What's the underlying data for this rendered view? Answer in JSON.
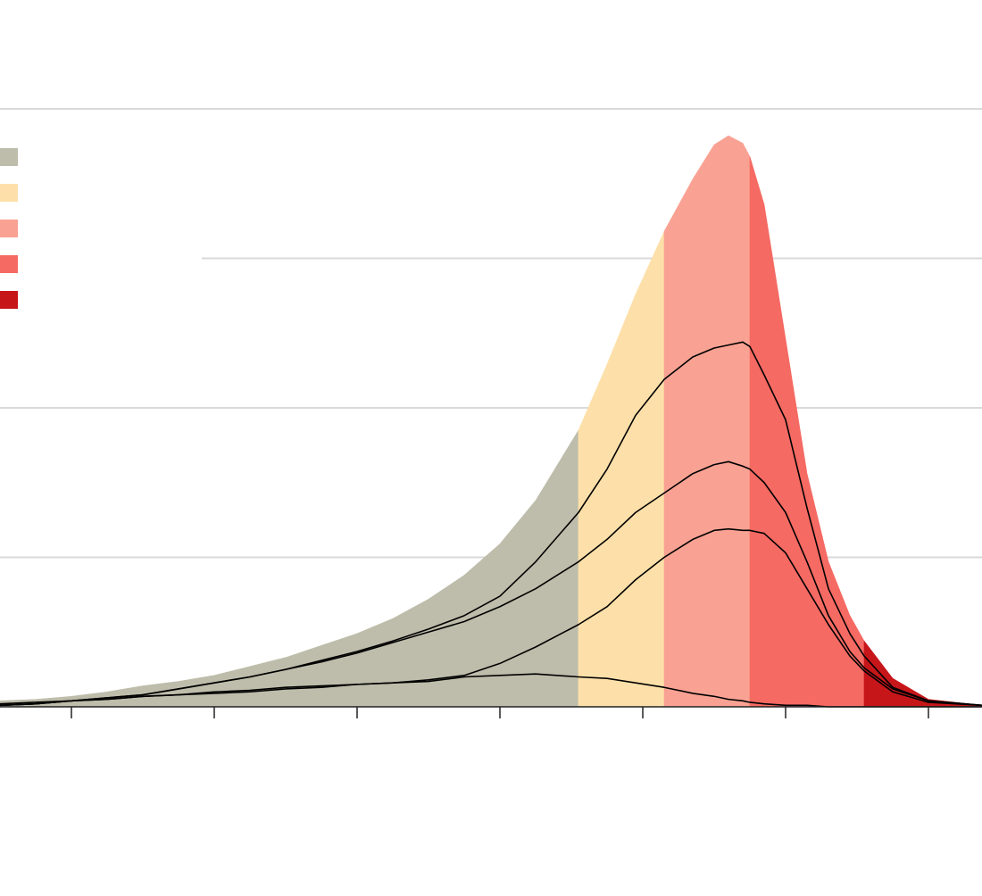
{
  "chart_data": {
    "type": "area",
    "x": [
      0.5,
      0.75,
      1,
      1.25,
      1.5,
      1.75,
      2,
      2.25,
      2.5,
      2.75,
      3,
      3.25,
      3.5,
      3.75,
      4,
      4.25,
      4.55,
      4.75,
      4.95,
      5.15,
      5.35,
      5.5,
      5.6,
      5.7,
      5.75,
      5.85,
      6,
      6.15,
      6.3,
      6.45,
      6.55,
      6.75,
      7,
      7.375
    ],
    "xlim": [
      0.5,
      7.375
    ],
    "xticks": [
      1,
      2,
      3,
      4,
      5,
      6,
      7
    ],
    "ylim": [
      0,
      4
    ],
    "yticks": [
      1,
      2,
      3,
      4
    ],
    "grid": true,
    "legend": "upper left",
    "series": [
      {
        "color": "#bebdab",
        "values": [
          0.04,
          0.05,
          0.07,
          0.1,
          0.14,
          0.17,
          0.21,
          0.27,
          0.33,
          0.41,
          0.49,
          0.59,
          0.72,
          0.88,
          1.09,
          1.38,
          1.85,
          null,
          null,
          null,
          null,
          null,
          null,
          null,
          null,
          null,
          null,
          null,
          null,
          null,
          null,
          null,
          null,
          null
        ]
      },
      {
        "color": "#fde0a9",
        "values": [
          null,
          null,
          null,
          null,
          null,
          null,
          null,
          null,
          null,
          null,
          null,
          null,
          null,
          null,
          null,
          null,
          1.85,
          2.29,
          2.76,
          3.18,
          null,
          null,
          null,
          null,
          null,
          null,
          null,
          null,
          null,
          null,
          null,
          null,
          null,
          null
        ]
      },
      {
        "color": "#f9a293",
        "values": [
          null,
          null,
          null,
          null,
          null,
          null,
          null,
          null,
          null,
          null,
          null,
          null,
          null,
          null,
          null,
          null,
          null,
          null,
          null,
          3.18,
          3.53,
          3.76,
          3.82,
          3.77,
          3.68,
          null,
          null,
          null,
          null,
          null,
          null,
          null,
          null,
          null
        ]
      },
      {
        "color": "#f56a63",
        "values": [
          null,
          null,
          null,
          null,
          null,
          null,
          null,
          null,
          null,
          null,
          null,
          null,
          null,
          null,
          null,
          null,
          null,
          null,
          null,
          null,
          null,
          null,
          null,
          null,
          3.68,
          3.36,
          2.46,
          1.56,
          0.97,
          0.61,
          0.44,
          null,
          null,
          null
        ]
      },
      {
        "color": "#c7161a",
        "values": [
          null,
          null,
          null,
          null,
          null,
          null,
          null,
          null,
          null,
          null,
          null,
          null,
          null,
          null,
          null,
          null,
          null,
          null,
          null,
          null,
          null,
          null,
          null,
          null,
          null,
          null,
          null,
          null,
          null,
          null,
          0.44,
          0.19,
          0.05,
          0.01
        ]
      }
    ],
    "lines": [
      {
        "color": "#000000",
        "values": [
          0.01,
          0.02,
          0.04,
          0.06,
          0.08,
          0.12,
          0.16,
          0.2,
          0.25,
          0.31,
          0.37,
          0.44,
          0.52,
          0.61,
          0.74,
          0.97,
          1.3,
          1.59,
          1.95,
          2.19,
          2.34,
          2.4,
          2.42,
          2.44,
          2.41,
          2.22,
          1.92,
          1.33,
          0.79,
          0.49,
          0.34,
          0.13,
          0.04,
          0.01
        ]
      },
      {
        "color": "#000000",
        "values": [
          0.01,
          0.02,
          0.04,
          0.06,
          0.08,
          0.12,
          0.16,
          0.2,
          0.25,
          0.3,
          0.36,
          0.43,
          0.5,
          0.57,
          0.67,
          0.79,
          0.97,
          1.12,
          1.3,
          1.43,
          1.56,
          1.62,
          1.64,
          1.61,
          1.59,
          1.5,
          1.3,
          0.97,
          0.61,
          0.37,
          0.26,
          0.12,
          0.04,
          0.01
        ]
      },
      {
        "color": "#000000",
        "values": [
          0.01,
          0.02,
          0.04,
          0.05,
          0.07,
          0.08,
          0.09,
          0.1,
          0.12,
          0.13,
          0.15,
          0.16,
          0.18,
          0.21,
          0.29,
          0.4,
          0.55,
          0.67,
          0.85,
          1.0,
          1.12,
          1.18,
          1.19,
          1.18,
          1.18,
          1.16,
          1.03,
          0.79,
          0.55,
          0.34,
          0.24,
          0.1,
          0.03,
          0.01
        ]
      },
      {
        "color": "#000000",
        "values": [
          0.02,
          0.03,
          0.04,
          0.05,
          0.07,
          0.08,
          0.1,
          0.11,
          0.13,
          0.14,
          0.15,
          0.16,
          0.17,
          0.2,
          0.21,
          0.22,
          0.2,
          0.19,
          0.16,
          0.13,
          0.09,
          0.07,
          0.05,
          0.04,
          0.03,
          0.02,
          0.01,
          0.01,
          0,
          0,
          0,
          0,
          0,
          0
        ]
      }
    ]
  }
}
